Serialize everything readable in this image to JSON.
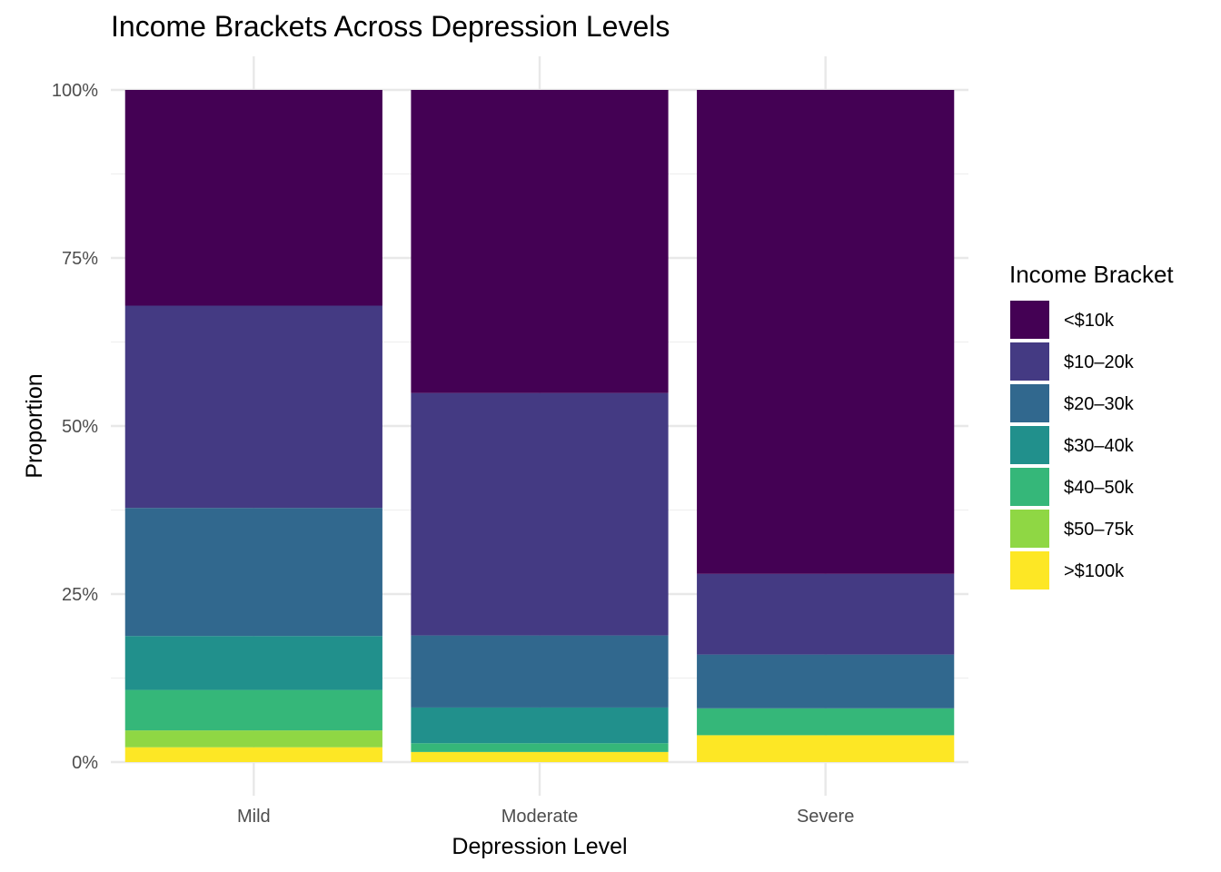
{
  "chart_data": {
    "type": "bar",
    "stacked": true,
    "position": "fill",
    "title": "Income Brackets Across Depression Levels",
    "xlabel": "Depression Level",
    "ylabel": "Proportion",
    "categories": [
      "Mild",
      "Moderate",
      "Severe"
    ],
    "ylim": [
      0,
      1
    ],
    "yticks": [
      0,
      0.25,
      0.5,
      0.75,
      1.0
    ],
    "ytick_labels": [
      "0%",
      "25%",
      "50%",
      "75%",
      "100%"
    ],
    "grid": true,
    "legend": {
      "title": "Income Bracket",
      "placement": "right"
    },
    "series": [
      {
        "name": "<$10k",
        "color": "#440154",
        "values": [
          0.32,
          0.45,
          0.72
        ]
      },
      {
        "name": "$10–20k",
        "color": "#443A83",
        "values": [
          0.3,
          0.36,
          0.12
        ]
      },
      {
        "name": "$20–30k",
        "color": "#31688E",
        "values": [
          0.19,
          0.107,
          0.08
        ]
      },
      {
        "name": "$30–40k",
        "color": "#21908C",
        "values": [
          0.08,
          0.053,
          0.0
        ]
      },
      {
        "name": "$40–50k",
        "color": "#35B779",
        "values": [
          0.06,
          0.013,
          0.04
        ]
      },
      {
        "name": "$50–75k",
        "color": "#8FD744",
        "values": [
          0.025,
          0.0,
          0.0
        ]
      },
      {
        "name": ">$100k",
        "color": "#FDE725",
        "values": [
          0.022,
          0.015,
          0.04
        ]
      }
    ]
  }
}
